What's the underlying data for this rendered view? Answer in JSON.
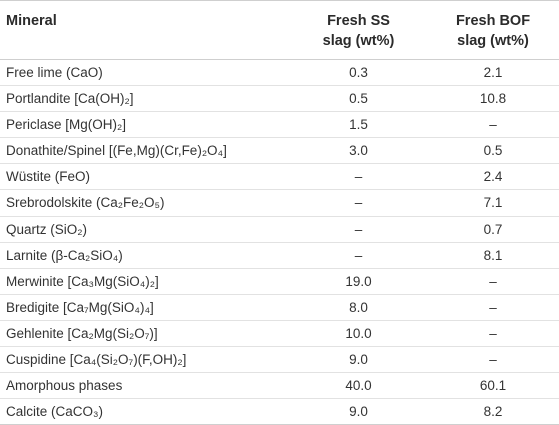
{
  "table": {
    "headers": {
      "mineral": "Mineral",
      "ss_line1": "Fresh SS",
      "ss_line2": "slag (wt%)",
      "bof_line1": "Fresh BOF",
      "bof_line2": "slag (wt%)"
    },
    "rows": [
      {
        "mineral": "Free lime (CaO)",
        "ss": "0.3",
        "bof": "2.1"
      },
      {
        "mineral": "Portlandite [Ca(OH)₂]",
        "ss": "0.5",
        "bof": "10.8"
      },
      {
        "mineral": "Periclase [Mg(OH)₂]",
        "ss": "1.5",
        "bof": "–"
      },
      {
        "mineral": "Donathite/Spinel [(Fe,Mg)(Cr,Fe)₂O₄]",
        "ss": "3.0",
        "bof": "0.5"
      },
      {
        "mineral": "Wüstite (FeO)",
        "ss": "–",
        "bof": "2.4"
      },
      {
        "mineral": "Srebrodolskite (Ca₂Fe₂O₅)",
        "ss": "–",
        "bof": "7.1"
      },
      {
        "mineral": "Quartz (SiO₂)",
        "ss": "–",
        "bof": "0.7"
      },
      {
        "mineral": "Larnite (β-Ca₂SiO₄)",
        "ss": "–",
        "bof": "8.1"
      },
      {
        "mineral": "Merwinite [Ca₃Mg(SiO₄)₂]",
        "ss": "19.0",
        "bof": "–"
      },
      {
        "mineral": "Bredigite [Ca₇Mg(SiO₄)₄]",
        "ss": "8.0",
        "bof": "–"
      },
      {
        "mineral": "Gehlenite [Ca₂Mg(Si₂O₇)]",
        "ss": "10.0",
        "bof": "–"
      },
      {
        "mineral": "Cuspidine [Ca₄(Si₂O₇)(F,OH)₂]",
        "ss": "9.0",
        "bof": "–"
      },
      {
        "mineral": "Amorphous phases",
        "ss": "40.0",
        "bof": "60.1"
      },
      {
        "mineral": "Calcite (CaCO₃)",
        "ss": "9.0",
        "bof": "8.2"
      }
    ]
  }
}
